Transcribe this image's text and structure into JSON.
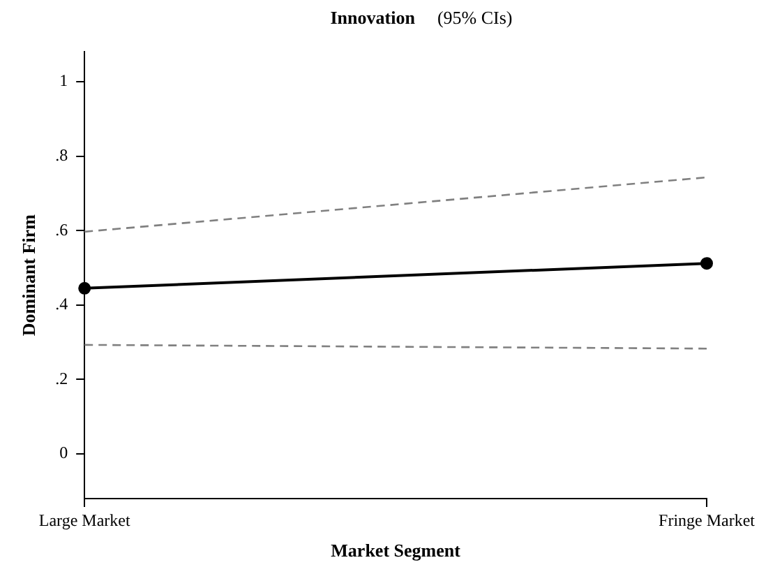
{
  "chart_data": {
    "type": "line",
    "title": "Innovation",
    "subtitle": "(95% CIs)",
    "xlabel": "Market Segment",
    "ylabel": "Dominant Firm",
    "categories": [
      "Large Market",
      "Fringe Market"
    ],
    "series": [
      {
        "color": "#000000",
        "values": [
          0.445,
          0.512
        ],
        "marker": "circle",
        "line_style": "solid"
      },
      {
        "color": "#808080",
        "values": [
          0.597,
          0.743
        ],
        "marker": "none",
        "line_style": "dashed"
      },
      {
        "color": "#808080",
        "values": [
          0.293,
          0.283
        ],
        "marker": "none",
        "line_style": "dashed"
      }
    ],
    "ylim": [
      -0.12,
      1.08
    ],
    "yticks": [
      0,
      {
        "value": 0.2,
        "label": ".2"
      },
      {
        "value": 0.4,
        "label": ".4"
      },
      {
        "value": 0.6,
        "label": ".6"
      },
      {
        "value": 0.8,
        "label": ".8"
      },
      1
    ],
    "grid": false,
    "legend": false
  }
}
